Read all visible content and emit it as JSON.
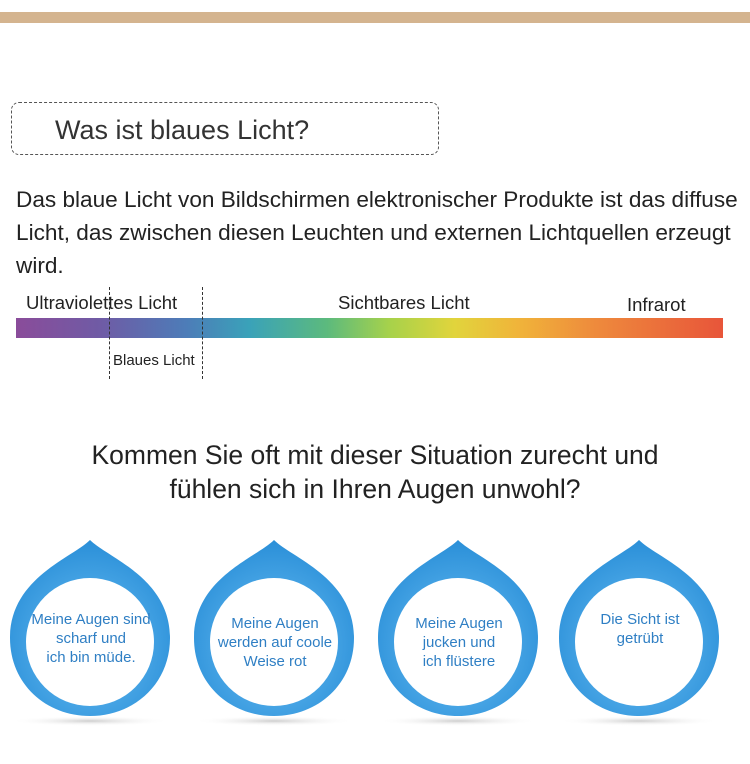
{
  "heading": "Was ist blaues Licht?",
  "intro": "Das blaue Licht von Bildschirmen elektronischer Produkte ist das diffuse Licht, das zwischen diesen Leuchten und externen Lichtquellen erzeugt wird.",
  "spectrum": {
    "uv_label": "Ultraviolettes Licht",
    "visible_label": "Sichtbares Licht",
    "ir_label": "Infrarot",
    "blue_label": "Blaues Licht"
  },
  "question": {
    "line1": "Kommen Sie oft mit dieser Situation zurecht und",
    "line2": "fühlen sich in Ihren Augen unwohl?"
  },
  "drops": [
    {
      "lines": [
        "Meine Augen sind",
        "scharf und",
        "ich bin müde."
      ]
    },
    {
      "lines": [
        "Meine Augen",
        "werden auf coole",
        "Weise rot"
      ]
    },
    {
      "lines": [
        "Meine Augen",
        "jucken und",
        "ich flüstere"
      ]
    },
    {
      "lines": [
        "Die Sicht ist",
        "getrübt"
      ]
    }
  ],
  "colors": {
    "top_bar": "#d4b48f",
    "drop_blue": "#3a9fe3",
    "drop_text": "#2f7fc4"
  }
}
